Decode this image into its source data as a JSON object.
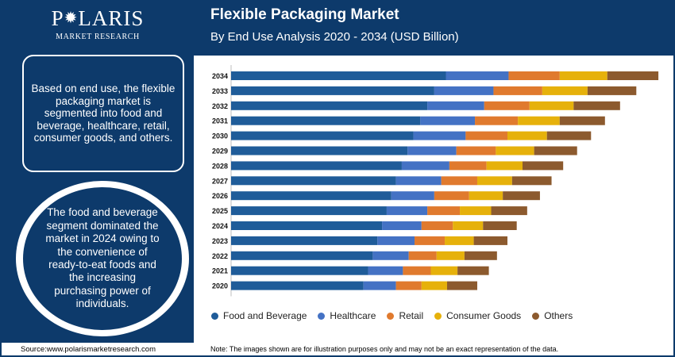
{
  "brand": {
    "name_left": "P",
    "name_right": "LARIS",
    "star": "✹",
    "tagline": "MARKET RESEARCH"
  },
  "header": {
    "title": "Flexible Packaging Market",
    "subtitle": "By End Use Analysis 2020 - 2034 (USD Billion)"
  },
  "sidebar": {
    "box_text": "Based on end use, the flexible packaging market is segmented into food and beverage, healthcare, retail, consumer goods, and others.",
    "circle_text": "The food and beverage segment dominated the market in 2024 owing to the convenience of ready-to-eat foods and the increasing purchasing power of individuals."
  },
  "footer": {
    "source": "Source:www.polarismarketresearch.com",
    "note": "Note: The images shown are for illustration purposes only and may not be an exact representation of the data."
  },
  "colors": {
    "navy": "#0d3a6b",
    "food_and_beverage": "#1f5c99",
    "healthcare": "#4472c4",
    "retail": "#e07a2e",
    "consumer_goods": "#e6b10b",
    "others": "#8c5a2e"
  },
  "chart_data": {
    "type": "bar",
    "orientation": "horizontal",
    "stacked": true,
    "categories": [
      "2034",
      "2033",
      "2032",
      "2031",
      "2030",
      "2029",
      "2028",
      "2027",
      "2026",
      "2025",
      "2024",
      "2023",
      "2022",
      "2021",
      "2020"
    ],
    "series": [
      {
        "name": "Food and Beverage",
        "color": "#1f5c99",
        "values": [
          185,
          175,
          169,
          163,
          157,
          152,
          147,
          142,
          138,
          134,
          130,
          126,
          122,
          118,
          114
        ]
      },
      {
        "name": "Healthcare",
        "color": "#4472c4",
        "values": [
          54,
          51,
          49,
          47,
          45,
          42,
          41,
          39,
          37,
          35,
          34,
          32,
          31,
          30,
          28
        ]
      },
      {
        "name": "Retail",
        "color": "#e07a2e",
        "values": [
          44,
          42,
          39,
          37,
          36,
          34,
          32,
          31,
          30,
          28,
          27,
          26,
          24,
          24,
          22
        ]
      },
      {
        "name": "Consumer Goods",
        "color": "#e6b10b",
        "values": [
          41,
          39,
          38,
          36,
          34,
          33,
          31,
          30,
          29,
          27,
          26,
          25,
          24,
          23,
          22
        ]
      },
      {
        "name": "Others",
        "color": "#8c5a2e",
        "values": [
          44,
          42,
          40,
          39,
          38,
          37,
          35,
          34,
          32,
          31,
          29,
          29,
          28,
          27,
          26
        ]
      }
    ],
    "xlim": [
      0,
      370
    ],
    "x_axis_labels_shown": false,
    "grid": false,
    "legend_position": "bottom"
  }
}
